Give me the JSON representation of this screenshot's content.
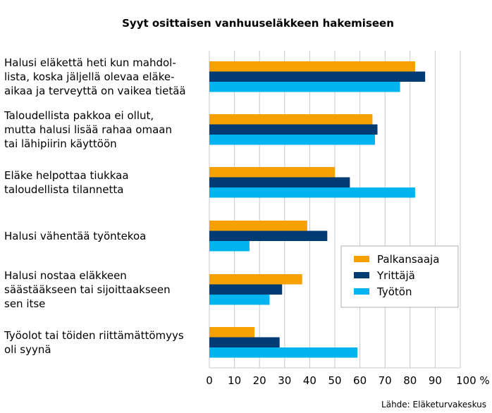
{
  "chart_data": {
    "type": "bar",
    "orientation": "horizontal",
    "title": "Syyt osittaisen vanhuuseläkkeen hakemiseen",
    "categories": [
      [
        "Halusi eläkettä heti kun mahdol-",
        "lista, koska jäljellä olevaa eläke-",
        "aikaa ja terveyttä on vaikea tietää"
      ],
      [
        "Taloudellista pakkoa ei ollut,",
        "mutta halusi lisää rahaa omaan",
        "tai lähipiirin käyttöön"
      ],
      [
        "Eläke helpottaa tiukkaa",
        "taloudellista tilannetta"
      ],
      [
        "Halusi vähentää työntekoa"
      ],
      [
        "Halusi nostaa eläkkeen",
        "säästääkseen tai sijoittaakseen",
        "sen itse"
      ],
      [
        "Työolot tai töiden riittämättömyys",
        "oli syynä"
      ]
    ],
    "series": [
      {
        "name": "Palkansaaja",
        "color": "#f7a100",
        "values": [
          82,
          65,
          50,
          39,
          37,
          18
        ]
      },
      {
        "name": "Yrittäjä",
        "color": "#003b73",
        "values": [
          86,
          67,
          56,
          47,
          29,
          28
        ]
      },
      {
        "name": "Työtön",
        "color": "#00b4f0",
        "values": [
          76,
          66,
          82,
          16,
          24,
          59
        ]
      }
    ],
    "x_ticks": [
      "0",
      "10",
      "20",
      "30",
      "40",
      "50",
      "60",
      "70",
      "80",
      "90",
      "100 %"
    ],
    "xlim": [
      0,
      100
    ],
    "grid": true,
    "legend_position": "right-middle",
    "source": "Lähde: Eläketurvakeskus"
  }
}
